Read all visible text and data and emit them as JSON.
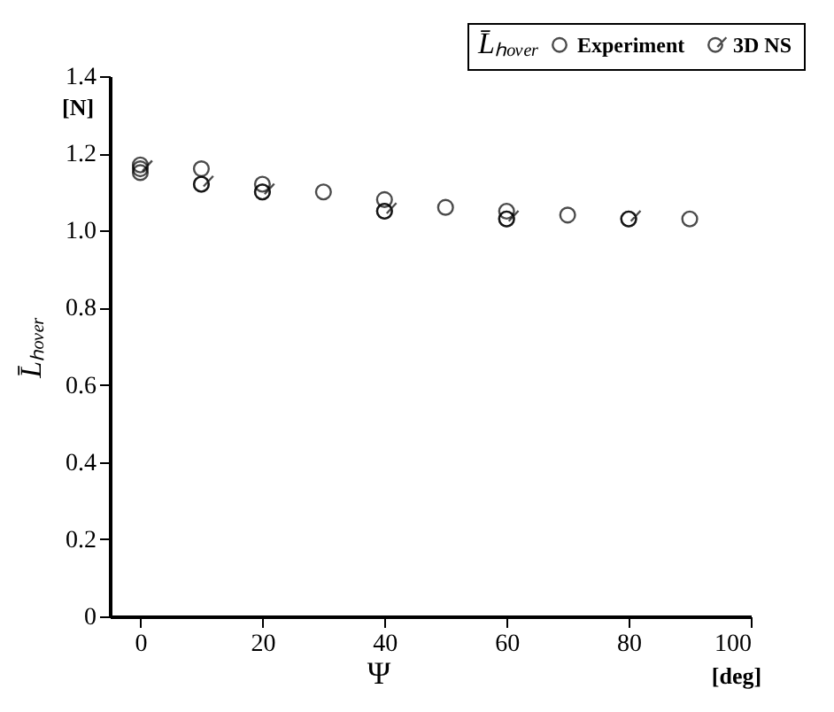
{
  "chart_data": {
    "type": "scatter",
    "xlabel": "Ψ",
    "ylabel": "L̄ₕₒᵥₑᵣ",
    "legend_title": "L̄ₕₒᵥₑᵣ",
    "annotations": [
      "[N]",
      "[deg]"
    ],
    "series": [
      {
        "name": "Experiment",
        "color": "#000000",
        "marker": "circle",
        "x": [
          0,
          0,
          10,
          10,
          20,
          20,
          30,
          40,
          40,
          50,
          60,
          60,
          70,
          80,
          90
        ],
        "values": [
          1.17,
          1.15,
          1.16,
          1.12,
          1.12,
          1.1,
          1.1,
          1.08,
          1.05,
          1.06,
          1.05,
          1.03,
          1.04,
          1.03,
          1.03
        ]
      },
      {
        "name": "3D NS",
        "color": "#000000",
        "x": [
          0,
          10,
          20,
          40,
          60,
          80
        ],
        "values": [
          1.16,
          1.12,
          1.1,
          1.05,
          1.03,
          1.03
        ]
      }
    ],
    "xlim": [
      -5,
      100
    ],
    "xticks": [
      0,
      20,
      40,
      60,
      80,
      100
    ],
    "ylim": [
      0,
      1.4
    ],
    "yticks": [
      0,
      {
        "value": 0.2,
        "label": "0.2"
      },
      {
        "value": 0.4,
        "label": "0.4"
      },
      {
        "value": 0.6,
        "label": "0.6"
      },
      {
        "value": 0.8,
        "label": "0.8"
      },
      {
        "value": 1.0,
        "label": "1.0"
      },
      {
        "value": 1.2,
        "label": "1.2"
      },
      {
        "value": 1.4,
        "label": "1.4"
      }
    ],
    "grid": false,
    "legend": "top right"
  }
}
